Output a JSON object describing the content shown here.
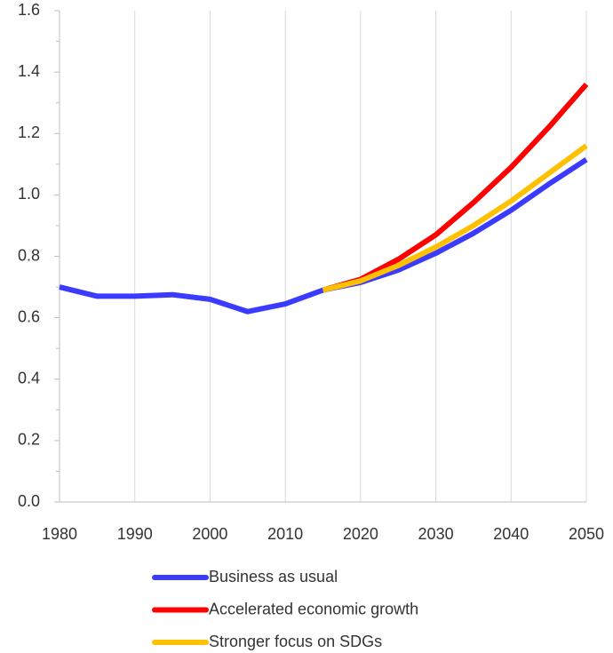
{
  "chart_data": {
    "type": "line",
    "x": [
      1980,
      1985,
      1990,
      1995,
      2000,
      2005,
      2010,
      2015,
      2020,
      2025,
      2030,
      2035,
      2040,
      2045,
      2050
    ],
    "series": [
      {
        "name": "Business as usual",
        "color": "#3b3bff",
        "values": [
          0.7,
          0.67,
          0.67,
          0.675,
          0.66,
          0.62,
          0.645,
          0.69,
          0.715,
          0.755,
          0.81,
          0.875,
          0.95,
          1.035,
          1.115
        ]
      },
      {
        "name": "Accelerated economic growth",
        "color": "#ff0000",
        "values": [
          null,
          null,
          null,
          null,
          null,
          null,
          null,
          0.69,
          0.725,
          0.79,
          0.87,
          0.975,
          1.09,
          1.22,
          1.36
        ]
      },
      {
        "name": "Stronger focus on SDGs",
        "color": "#ffc000",
        "values": [
          null,
          null,
          null,
          null,
          null,
          null,
          null,
          0.69,
          0.72,
          0.77,
          0.83,
          0.9,
          0.98,
          1.07,
          1.16
        ]
      }
    ],
    "xlim": [
      1980,
      2050
    ],
    "xticks": [
      1980,
      1990,
      2000,
      2010,
      2020,
      2030,
      2040,
      2050
    ],
    "ylim": [
      0,
      1.6
    ],
    "yticks": [
      {
        "value": 0,
        "label": "0.0"
      },
      0.2,
      0.4,
      0.6,
      0.8,
      {
        "value": 1,
        "label": "1.0"
      },
      1.2,
      1.4,
      1.6
    ],
    "grid": "x",
    "legend": "bottom"
  }
}
